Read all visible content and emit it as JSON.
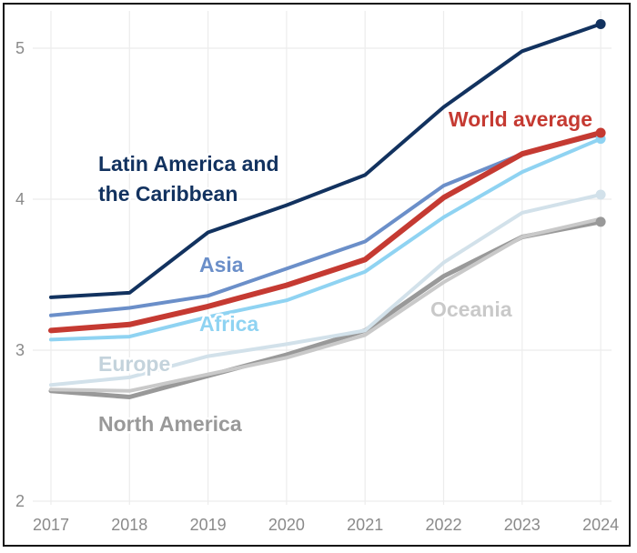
{
  "chart_data": {
    "type": "line",
    "title": "",
    "xlabel": "",
    "ylabel": "",
    "categories": [
      "2017",
      "2018",
      "2019",
      "2020",
      "2021",
      "2022",
      "2023",
      "2024"
    ],
    "y_ticks": [
      "2",
      "3",
      "4",
      "5"
    ],
    "ylim": [
      2,
      5.2
    ],
    "grid": true,
    "series": [
      {
        "name": "North America",
        "label": "North America",
        "color": "#999999",
        "width": 5,
        "end_marker": true,
        "values": [
          2.73,
          2.69,
          2.83,
          2.97,
          3.13,
          3.49,
          3.75,
          3.85
        ]
      },
      {
        "name": "Oceania",
        "label": "Oceania",
        "color": "#c9c9c9",
        "width": 4,
        "end_marker": false,
        "values": [
          2.74,
          2.73,
          2.84,
          2.95,
          3.1,
          3.45,
          3.75,
          3.87
        ]
      },
      {
        "name": "Europe",
        "label": "Europe",
        "color": "#d2e1ea",
        "width": 4,
        "end_marker": true,
        "values": [
          2.77,
          2.82,
          2.96,
          3.04,
          3.13,
          3.58,
          3.91,
          4.03
        ]
      },
      {
        "name": "Africa",
        "label": "Africa",
        "color": "#8fd3f2",
        "width": 4,
        "end_marker": true,
        "values": [
          3.07,
          3.09,
          3.22,
          3.33,
          3.52,
          3.88,
          4.18,
          4.4
        ]
      },
      {
        "name": "Asia",
        "label": "Asia",
        "color": "#6b8fc9",
        "width": 4,
        "end_marker": false,
        "values": [
          3.23,
          3.28,
          3.36,
          3.54,
          3.72,
          4.09,
          4.3,
          4.43
        ]
      },
      {
        "name": "World average",
        "label": "World average",
        "color": "#c53a32",
        "width": 6,
        "end_marker": true,
        "values": [
          3.13,
          3.17,
          3.29,
          3.43,
          3.6,
          4.01,
          4.3,
          4.44
        ]
      },
      {
        "name": "Latin America and the Caribbean",
        "label_lines": [
          "Latin America and",
          "the Caribbean"
        ],
        "color": "#12325f",
        "width": 4,
        "end_marker": true,
        "values": [
          3.35,
          3.38,
          3.78,
          3.96,
          4.16,
          4.61,
          4.98,
          5.16
        ]
      }
    ]
  }
}
